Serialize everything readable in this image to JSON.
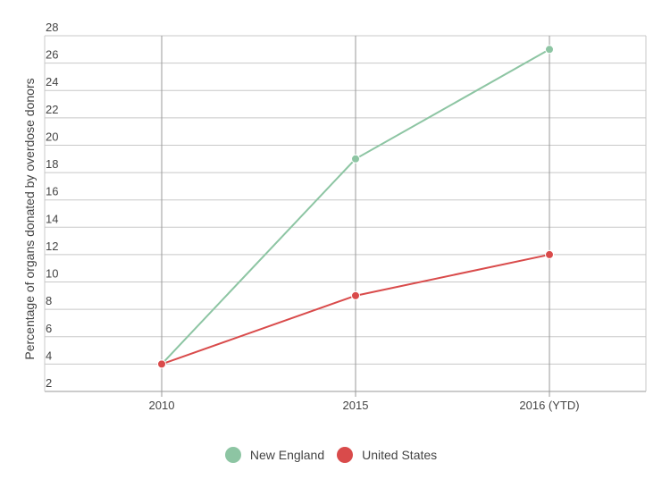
{
  "chart_data": {
    "type": "line",
    "ylabel": "Percentage of organs donated by overdose donors",
    "xlabel": "",
    "categories": [
      "2010",
      "2015",
      "2016 (YTD)"
    ],
    "y_ticks": [
      "2",
      "4",
      "6",
      "8",
      "10",
      "12",
      "14",
      "16",
      "18",
      "20",
      "22",
      "24",
      "26",
      "28"
    ],
    "ylim": [
      2,
      28
    ],
    "grid": true,
    "legend_position": "bottom",
    "series": [
      {
        "name": "New England",
        "color": "#8dc5a3",
        "values": [
          4,
          19,
          27
        ]
      },
      {
        "name": "United States",
        "color": "#d94b4b",
        "values": [
          4,
          9,
          12
        ]
      }
    ]
  }
}
